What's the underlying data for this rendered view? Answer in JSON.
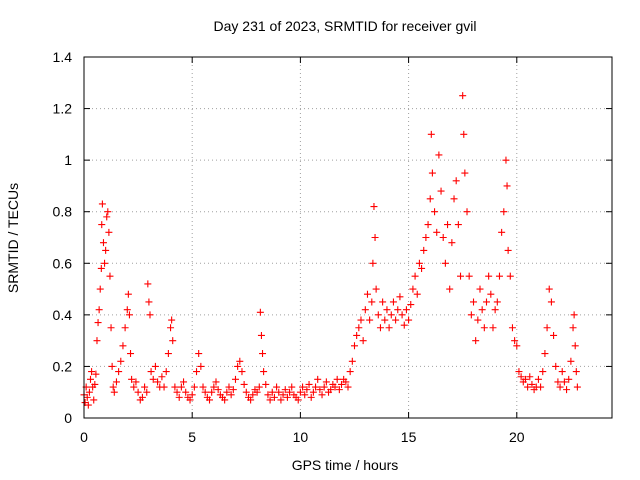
{
  "chart_data": {
    "type": "scatter",
    "title": "Day 231 of 2023, SRMTID for receiver gvil",
    "xlabel": "GPS time / hours",
    "ylabel": "SRMTID / TECUs",
    "xlim": [
      0,
      24.4
    ],
    "ylim": [
      0,
      1.4
    ],
    "x_ticks": [
      0,
      5,
      10,
      15,
      20
    ],
    "x_tick_labels": [
      "0",
      "5",
      "10",
      "15",
      "20"
    ],
    "y_ticks": [
      0,
      0.2,
      0.4,
      0.6,
      0.8,
      1,
      1.2,
      1.4
    ],
    "y_tick_labels": [
      "0",
      "0.2",
      "0.4",
      "0.6",
      "0.8",
      "1",
      "1.2",
      "1.4"
    ],
    "grid": true,
    "marker": "plus",
    "color": "#ff0000",
    "series": [
      {
        "name": "SRMTID",
        "points": [
          [
            0.0,
            0.09
          ],
          [
            0.05,
            0.06
          ],
          [
            0.1,
            0.12
          ],
          [
            0.15,
            0.08
          ],
          [
            0.2,
            0.05
          ],
          [
            0.25,
            0.1
          ],
          [
            0.3,
            0.15
          ],
          [
            0.35,
            0.18
          ],
          [
            0.4,
            0.12
          ],
          [
            0.45,
            0.07
          ],
          [
            0.5,
            0.13
          ],
          [
            0.55,
            0.17
          ],
          [
            0.6,
            0.3
          ],
          [
            0.65,
            0.37
          ],
          [
            0.7,
            0.42
          ],
          [
            0.75,
            0.5
          ],
          [
            0.8,
            0.58
          ],
          [
            0.82,
            0.75
          ],
          [
            0.85,
            0.83
          ],
          [
            0.9,
            0.68
          ],
          [
            0.95,
            0.6
          ],
          [
            1.0,
            0.65
          ],
          [
            1.05,
            0.78
          ],
          [
            1.1,
            0.8
          ],
          [
            1.15,
            0.72
          ],
          [
            1.2,
            0.55
          ],
          [
            1.25,
            0.35
          ],
          [
            1.3,
            0.2
          ],
          [
            1.35,
            0.12
          ],
          [
            1.4,
            0.1
          ],
          [
            1.5,
            0.14
          ],
          [
            1.6,
            0.18
          ],
          [
            1.7,
            0.22
          ],
          [
            1.8,
            0.28
          ],
          [
            1.9,
            0.35
          ],
          [
            2.0,
            0.42
          ],
          [
            2.05,
            0.48
          ],
          [
            2.1,
            0.4
          ],
          [
            2.15,
            0.25
          ],
          [
            2.2,
            0.15
          ],
          [
            2.3,
            0.12
          ],
          [
            2.4,
            0.14
          ],
          [
            2.5,
            0.1
          ],
          [
            2.6,
            0.07
          ],
          [
            2.7,
            0.08
          ],
          [
            2.8,
            0.12
          ],
          [
            2.9,
            0.1
          ],
          [
            2.95,
            0.52
          ],
          [
            3.0,
            0.45
          ],
          [
            3.05,
            0.4
          ],
          [
            3.1,
            0.18
          ],
          [
            3.2,
            0.15
          ],
          [
            3.3,
            0.2
          ],
          [
            3.4,
            0.14
          ],
          [
            3.5,
            0.12
          ],
          [
            3.6,
            0.16
          ],
          [
            3.7,
            0.12
          ],
          [
            3.8,
            0.18
          ],
          [
            3.9,
            0.25
          ],
          [
            4.0,
            0.35
          ],
          [
            4.05,
            0.38
          ],
          [
            4.1,
            0.3
          ],
          [
            4.2,
            0.12
          ],
          [
            4.3,
            0.1
          ],
          [
            4.4,
            0.08
          ],
          [
            4.5,
            0.12
          ],
          [
            4.6,
            0.14
          ],
          [
            4.7,
            0.1
          ],
          [
            4.8,
            0.08
          ],
          [
            4.9,
            0.07
          ],
          [
            5.0,
            0.09
          ],
          [
            5.1,
            0.12
          ],
          [
            5.2,
            0.18
          ],
          [
            5.3,
            0.25
          ],
          [
            5.4,
            0.2
          ],
          [
            5.5,
            0.12
          ],
          [
            5.6,
            0.1
          ],
          [
            5.7,
            0.08
          ],
          [
            5.8,
            0.07
          ],
          [
            5.9,
            0.1
          ],
          [
            6.0,
            0.12
          ],
          [
            6.1,
            0.14
          ],
          [
            6.2,
            0.11
          ],
          [
            6.3,
            0.09
          ],
          [
            6.4,
            0.08
          ],
          [
            6.5,
            0.07
          ],
          [
            6.6,
            0.1
          ],
          [
            6.7,
            0.12
          ],
          [
            6.8,
            0.09
          ],
          [
            6.9,
            0.11
          ],
          [
            7.0,
            0.15
          ],
          [
            7.1,
            0.2
          ],
          [
            7.2,
            0.22
          ],
          [
            7.3,
            0.18
          ],
          [
            7.4,
            0.13
          ],
          [
            7.5,
            0.1
          ],
          [
            7.6,
            0.08
          ],
          [
            7.7,
            0.07
          ],
          [
            7.8,
            0.09
          ],
          [
            7.9,
            0.11
          ],
          [
            8.0,
            0.1
          ],
          [
            8.1,
            0.12
          ],
          [
            8.15,
            0.41
          ],
          [
            8.2,
            0.32
          ],
          [
            8.25,
            0.25
          ],
          [
            8.3,
            0.18
          ],
          [
            8.4,
            0.13
          ],
          [
            8.5,
            0.09
          ],
          [
            8.6,
            0.07
          ],
          [
            8.7,
            0.1
          ],
          [
            8.8,
            0.08
          ],
          [
            8.9,
            0.12
          ],
          [
            9.0,
            0.1
          ],
          [
            9.1,
            0.07
          ],
          [
            9.2,
            0.09
          ],
          [
            9.3,
            0.11
          ],
          [
            9.4,
            0.08
          ],
          [
            9.5,
            0.1
          ],
          [
            9.6,
            0.12
          ],
          [
            9.7,
            0.09
          ],
          [
            9.8,
            0.08
          ],
          [
            9.9,
            0.07
          ],
          [
            10.0,
            0.1
          ],
          [
            10.1,
            0.12
          ],
          [
            10.2,
            0.09
          ],
          [
            10.3,
            0.11
          ],
          [
            10.4,
            0.13
          ],
          [
            10.5,
            0.08
          ],
          [
            10.6,
            0.1
          ],
          [
            10.7,
            0.12
          ],
          [
            10.8,
            0.15
          ],
          [
            10.9,
            0.11
          ],
          [
            11.0,
            0.09
          ],
          [
            11.1,
            0.12
          ],
          [
            11.2,
            0.14
          ],
          [
            11.3,
            0.1
          ],
          [
            11.4,
            0.11
          ],
          [
            11.5,
            0.13
          ],
          [
            11.6,
            0.12
          ],
          [
            11.7,
            0.15
          ],
          [
            11.8,
            0.11
          ],
          [
            11.9,
            0.13
          ],
          [
            12.0,
            0.15
          ],
          [
            12.1,
            0.14
          ],
          [
            12.2,
            0.12
          ],
          [
            12.3,
            0.18
          ],
          [
            12.4,
            0.22
          ],
          [
            12.5,
            0.28
          ],
          [
            12.6,
            0.32
          ],
          [
            12.7,
            0.35
          ],
          [
            12.8,
            0.38
          ],
          [
            12.9,
            0.3
          ],
          [
            13.0,
            0.42
          ],
          [
            13.1,
            0.48
          ],
          [
            13.2,
            0.38
          ],
          [
            13.3,
            0.45
          ],
          [
            13.35,
            0.6
          ],
          [
            13.4,
            0.82
          ],
          [
            13.45,
            0.7
          ],
          [
            13.5,
            0.5
          ],
          [
            13.6,
            0.4
          ],
          [
            13.7,
            0.35
          ],
          [
            13.8,
            0.45
          ],
          [
            13.9,
            0.38
          ],
          [
            14.0,
            0.42
          ],
          [
            14.1,
            0.35
          ],
          [
            14.2,
            0.4
          ],
          [
            14.3,
            0.45
          ],
          [
            14.4,
            0.38
          ],
          [
            14.5,
            0.42
          ],
          [
            14.6,
            0.47
          ],
          [
            14.7,
            0.4
          ],
          [
            14.8,
            0.36
          ],
          [
            14.9,
            0.42
          ],
          [
            15.0,
            0.38
          ],
          [
            15.1,
            0.44
          ],
          [
            15.2,
            0.5
          ],
          [
            15.3,
            0.55
          ],
          [
            15.4,
            0.48
          ],
          [
            15.5,
            0.6
          ],
          [
            15.6,
            0.58
          ],
          [
            15.7,
            0.65
          ],
          [
            15.8,
            0.7
          ],
          [
            15.9,
            0.75
          ],
          [
            16.0,
            0.85
          ],
          [
            16.05,
            1.1
          ],
          [
            16.1,
            0.95
          ],
          [
            16.2,
            0.8
          ],
          [
            16.3,
            0.72
          ],
          [
            16.4,
            1.02
          ],
          [
            16.5,
            0.88
          ],
          [
            16.6,
            0.7
          ],
          [
            16.7,
            0.6
          ],
          [
            16.8,
            0.75
          ],
          [
            16.9,
            0.5
          ],
          [
            17.0,
            0.68
          ],
          [
            17.1,
            0.85
          ],
          [
            17.2,
            0.92
          ],
          [
            17.3,
            0.75
          ],
          [
            17.4,
            0.55
          ],
          [
            17.5,
            1.25
          ],
          [
            17.55,
            1.1
          ],
          [
            17.6,
            0.95
          ],
          [
            17.7,
            0.8
          ],
          [
            17.8,
            0.55
          ],
          [
            17.9,
            0.4
          ],
          [
            18.0,
            0.45
          ],
          [
            18.1,
            0.3
          ],
          [
            18.2,
            0.38
          ],
          [
            18.3,
            0.5
          ],
          [
            18.4,
            0.42
          ],
          [
            18.5,
            0.35
          ],
          [
            18.6,
            0.45
          ],
          [
            18.7,
            0.55
          ],
          [
            18.8,
            0.48
          ],
          [
            18.9,
            0.35
          ],
          [
            19.0,
            0.42
          ],
          [
            19.1,
            0.45
          ],
          [
            19.2,
            0.55
          ],
          [
            19.3,
            0.72
          ],
          [
            19.4,
            0.8
          ],
          [
            19.5,
            1.0
          ],
          [
            19.55,
            0.9
          ],
          [
            19.6,
            0.65
          ],
          [
            19.7,
            0.55
          ],
          [
            19.8,
            0.35
          ],
          [
            19.9,
            0.3
          ],
          [
            20.0,
            0.28
          ],
          [
            20.1,
            0.18
          ],
          [
            20.2,
            0.16
          ],
          [
            20.3,
            0.14
          ],
          [
            20.4,
            0.15
          ],
          [
            20.5,
            0.12
          ],
          [
            20.6,
            0.16
          ],
          [
            20.7,
            0.13
          ],
          [
            20.8,
            0.11
          ],
          [
            20.9,
            0.12
          ],
          [
            21.0,
            0.15
          ],
          [
            21.1,
            0.12
          ],
          [
            21.2,
            0.18
          ],
          [
            21.3,
            0.25
          ],
          [
            21.4,
            0.35
          ],
          [
            21.5,
            0.5
          ],
          [
            21.6,
            0.45
          ],
          [
            21.7,
            0.32
          ],
          [
            21.8,
            0.2
          ],
          [
            21.9,
            0.14
          ],
          [
            22.0,
            0.12
          ],
          [
            22.1,
            0.18
          ],
          [
            22.2,
            0.14
          ],
          [
            22.3,
            0.11
          ],
          [
            22.4,
            0.15
          ],
          [
            22.5,
            0.22
          ],
          [
            22.6,
            0.35
          ],
          [
            22.65,
            0.4
          ],
          [
            22.7,
            0.28
          ],
          [
            22.75,
            0.18
          ],
          [
            22.8,
            0.12
          ]
        ]
      }
    ]
  }
}
